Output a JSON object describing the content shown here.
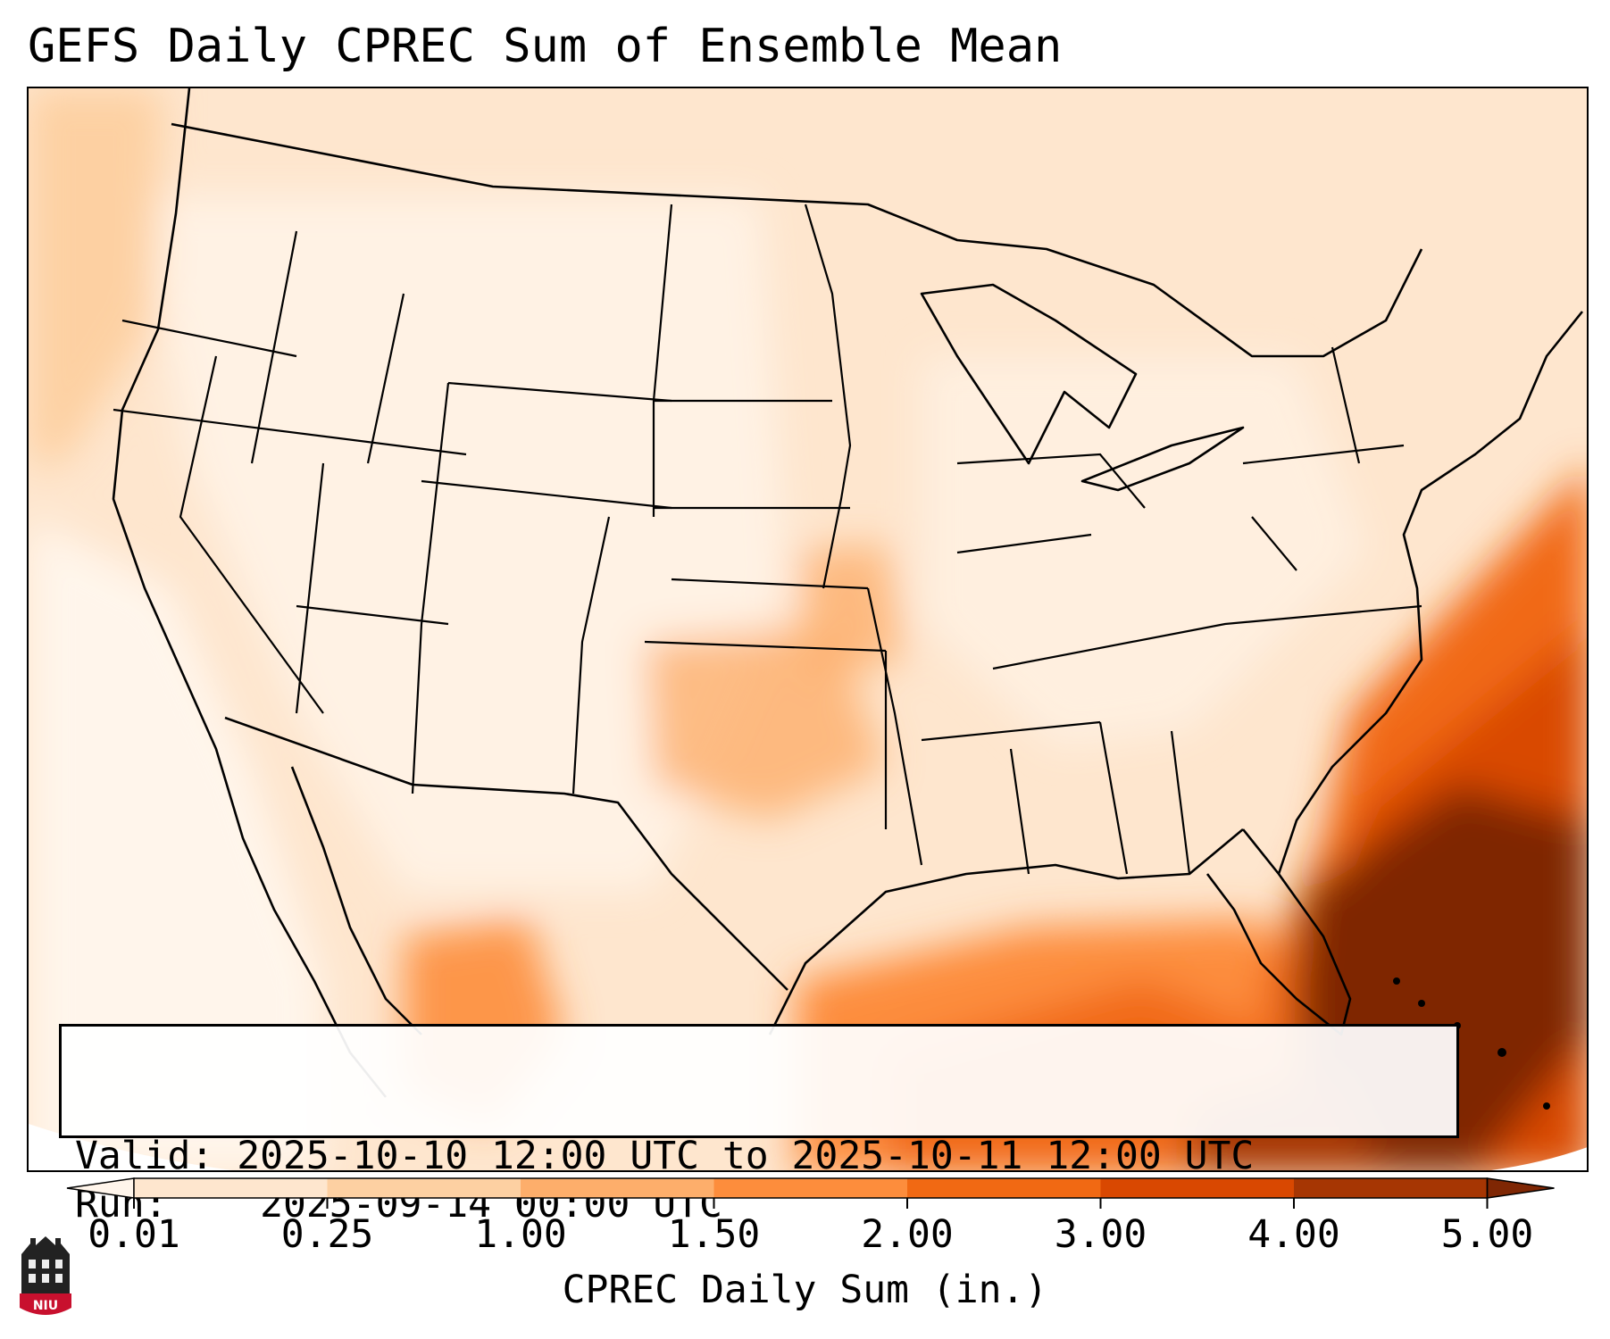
{
  "title": "GEFS Daily CPREC Sum of Ensemble Mean",
  "info": {
    "valid_label": "Valid:",
    "valid_value": "2025-10-10 12:00 UTC to 2025-10-11 12:00 UTC",
    "run_label": "Run:",
    "run_value": "2025-09-14 00:00 UTC"
  },
  "colorbar": {
    "title": "CPREC Daily Sum (in.)",
    "levels": [
      "0.01",
      "0.25",
      "1.00",
      "1.50",
      "2.00",
      "3.00",
      "4.00",
      "5.00"
    ],
    "colors": [
      "#fff5eb",
      "#fee6ce",
      "#fdd0a2",
      "#fdae6b",
      "#fd8d3c",
      "#f16913",
      "#d94801",
      "#a63603",
      "#7f2704"
    ]
  },
  "logo": {
    "text": "NIU",
    "colors": {
      "shield": "#c8102e",
      "building": "#222222"
    }
  }
}
